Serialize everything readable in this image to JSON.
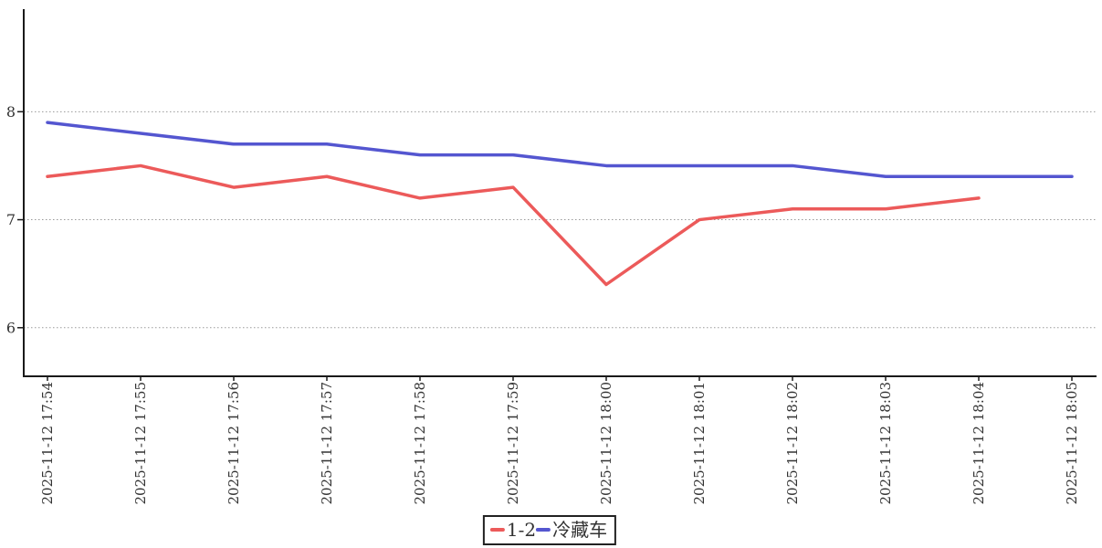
{
  "chart_data": {
    "type": "line",
    "title": "",
    "xlabel": "",
    "ylabel": "",
    "x": [
      "2025-11-12 17:54",
      "2025-11-12 17:55",
      "2025-11-12 17:56",
      "2025-11-12 17:57",
      "2025-11-12 17:58",
      "2025-11-12 17:59",
      "2025-11-12 18:00",
      "2025-11-12 18:01",
      "2025-11-12 18:02",
      "2025-11-12 18:03",
      "2025-11-12 18:04",
      "2025-11-12 18:05"
    ],
    "series": [
      {
        "name": "1-2",
        "color": "#ec5a5a",
        "values": [
          7.4,
          7.5,
          7.3,
          7.4,
          7.2,
          7.3,
          6.4,
          7.0,
          7.1,
          7.1,
          7.2,
          null
        ]
      },
      {
        "name": "冷藏车",
        "color": "#5456d0",
        "values": [
          7.9,
          7.8,
          7.7,
          7.7,
          7.6,
          7.6,
          7.5,
          7.5,
          7.5,
          7.4,
          7.4,
          7.4
        ]
      }
    ],
    "yticks": [
      6,
      7,
      8
    ],
    "ylim": [
      5.55,
      8.95
    ],
    "grid": "horizontal-dotted",
    "grid_color": "#999999",
    "axis_color": "#1a1a1a",
    "background": "#ffffff",
    "legend_position": "bottom-center"
  }
}
